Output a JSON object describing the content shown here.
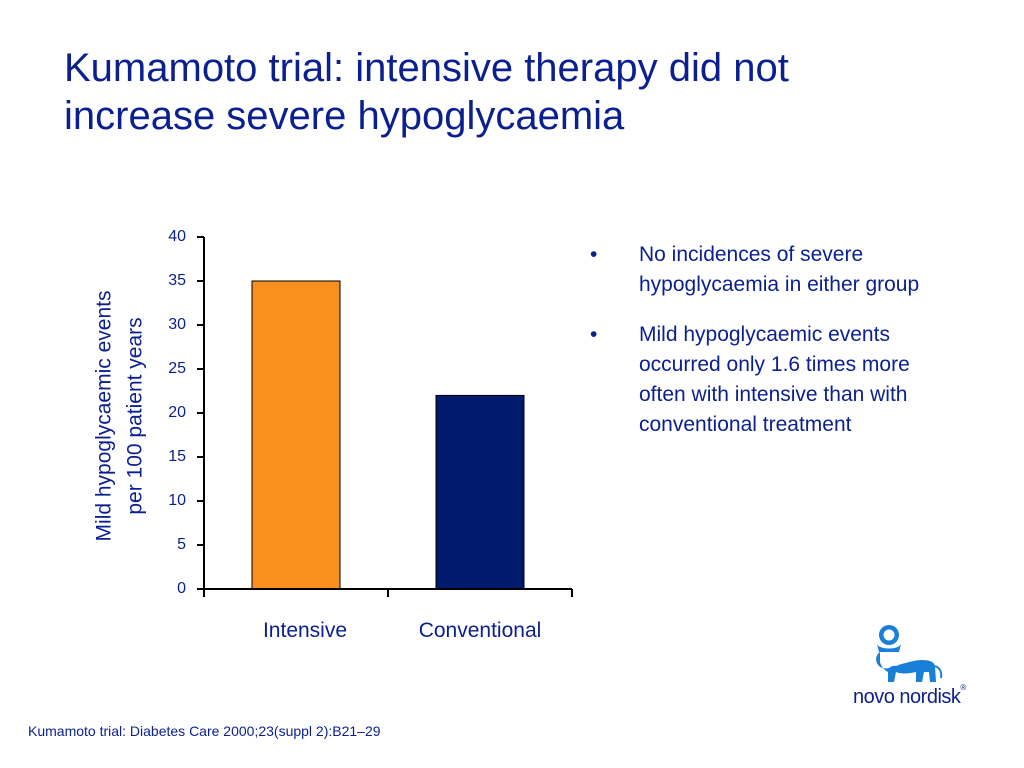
{
  "title": {
    "line1": "Kumamoto trial: intensive therapy did not",
    "line2": "increase severe hypoglycaemia"
  },
  "chart_data": {
    "type": "bar",
    "categories": [
      "Intensive",
      "Conventional"
    ],
    "values": [
      35,
      22
    ],
    "colors": [
      "#f7901e",
      "#001a6e"
    ],
    "ylabel_lines": [
      "Mild hypoglycaemic events",
      "per 100 patient years"
    ],
    "ylim": [
      0,
      40
    ],
    "yticks": [
      0,
      5,
      10,
      15,
      20,
      25,
      30,
      35,
      40
    ],
    "grid": false,
    "legend": "none"
  },
  "bullets": [
    "No incidences of severe hypoglycaemia in either group",
    "Mild hypoglycaemic events occurred only 1.6 times more often with intensive than with conventional treatment"
  ],
  "bullet_symbol": "•",
  "footnote": "Kumamoto trial: Diabetes Care 2000;23(suppl 2):B21–29",
  "logo": {
    "wordmark": "novo nordisk",
    "registered": "®",
    "icon": "apis-bull-icon",
    "color": "#1a7fd6"
  },
  "colors": {
    "text": "#0b1f8f",
    "axis": "#000000"
  }
}
